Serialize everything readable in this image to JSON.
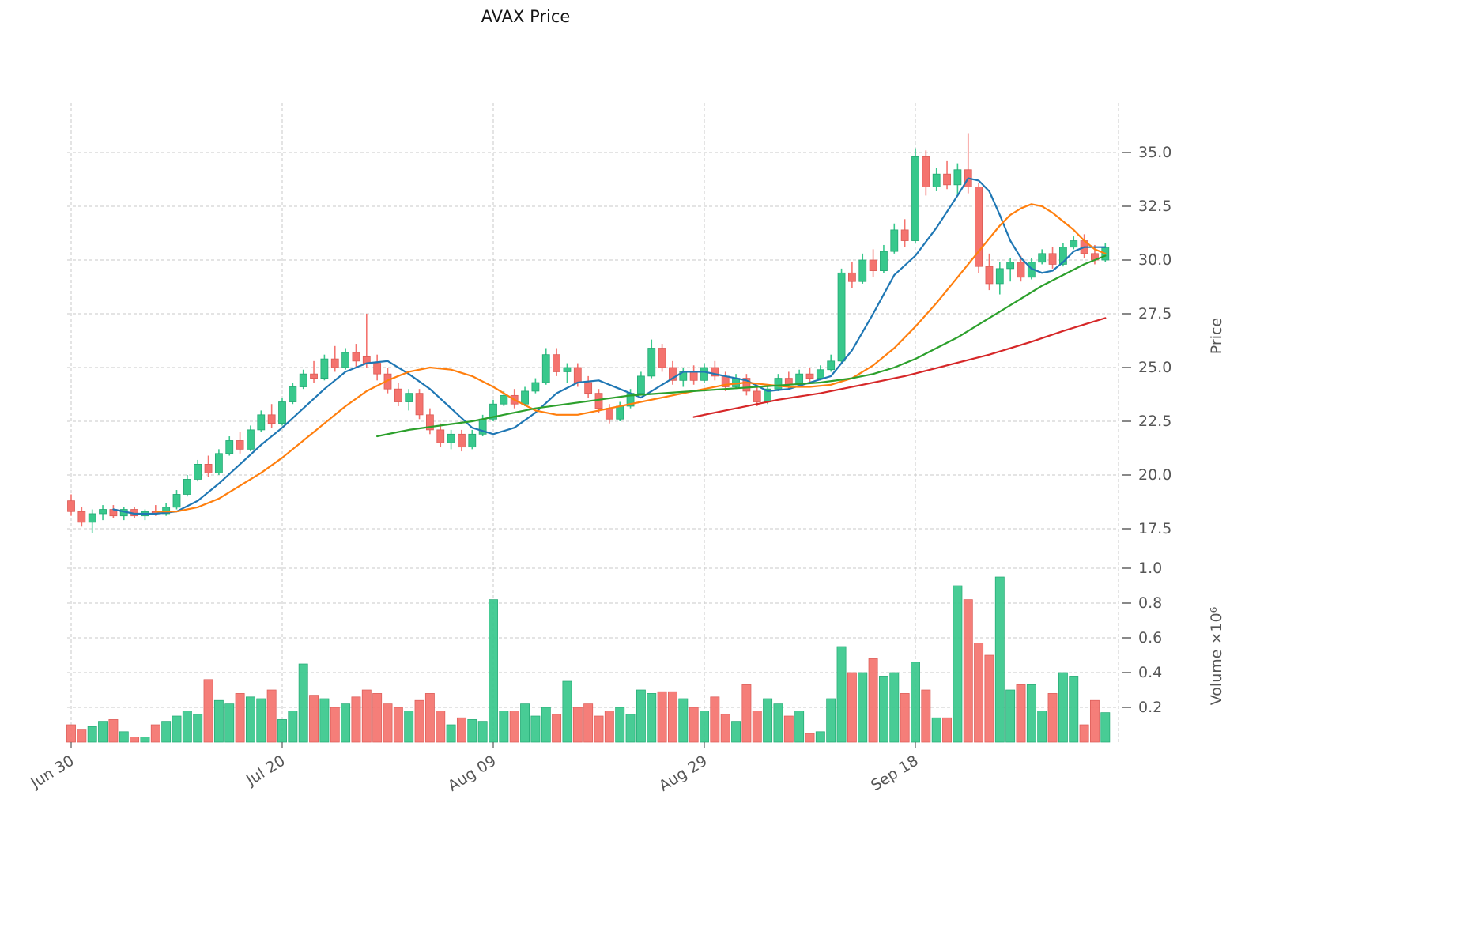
{
  "title": "AVAX Price",
  "axes": {
    "price_axis_label": "Price",
    "volume_axis_label": "Volume ×10⁶",
    "price_ticks": [
      {
        "v": 17.5,
        "label": "17.5"
      },
      {
        "v": 20.0,
        "label": "20.0"
      },
      {
        "v": 22.5,
        "label": "22.5"
      },
      {
        "v": 25.0,
        "label": "25.0"
      },
      {
        "v": 27.5,
        "label": "27.5"
      },
      {
        "v": 30.0,
        "label": "30.0"
      },
      {
        "v": 32.5,
        "label": "32.5"
      },
      {
        "v": 35.0,
        "label": "35.0"
      }
    ],
    "volume_ticks": [
      {
        "v": 0.2,
        "label": "0.2"
      },
      {
        "v": 0.4,
        "label": "0.4"
      },
      {
        "v": 0.6,
        "label": "0.6"
      },
      {
        "v": 0.8,
        "label": "0.8"
      },
      {
        "v": 1.0,
        "label": "1.0"
      }
    ],
    "x_ticks": [
      {
        "index": 0,
        "label": "Jun 30"
      },
      {
        "index": 20,
        "label": "Jul 20"
      },
      {
        "index": 40,
        "label": "Aug 09"
      },
      {
        "index": 60,
        "label": "Aug 29"
      },
      {
        "index": 80,
        "label": "Sep 18"
      }
    ]
  },
  "colors": {
    "up": "#38c88c",
    "down": "#f4736e",
    "up_edge": "#22a873",
    "down_edge": "#db5b56",
    "ma_fast": "#1f77b4",
    "ma_mid": "#ff7f0e",
    "ma_slow": "#2ca02c",
    "trend": "#d62728",
    "grid": "#c9c9c9",
    "tick_text": "#565656",
    "title_text": "#151515"
  },
  "chart_data": {
    "type": "candlestick",
    "x_unit": "daily",
    "price_ylim": [
      16.6,
      36.9
    ],
    "volume_ylim": [
      0,
      1.05
    ],
    "grid": "dashed",
    "candle_columns": [
      "open",
      "high",
      "low",
      "close",
      "volume_millions"
    ],
    "candles": [
      [
        18.8,
        19.1,
        18.1,
        18.3,
        0.1
      ],
      [
        18.3,
        18.5,
        17.6,
        17.8,
        0.07
      ],
      [
        17.8,
        18.4,
        17.3,
        18.2,
        0.09
      ],
      [
        18.2,
        18.6,
        17.9,
        18.4,
        0.12
      ],
      [
        18.4,
        18.6,
        18.0,
        18.1,
        0.13
      ],
      [
        18.1,
        18.5,
        17.9,
        18.4,
        0.06
      ],
      [
        18.4,
        18.5,
        18.0,
        18.1,
        0.03
      ],
      [
        18.1,
        18.4,
        17.9,
        18.3,
        0.03
      ],
      [
        18.3,
        18.6,
        18.1,
        18.2,
        0.1
      ],
      [
        18.2,
        18.7,
        18.1,
        18.5,
        0.12
      ],
      [
        18.5,
        19.3,
        18.4,
        19.1,
        0.15
      ],
      [
        19.1,
        20.0,
        19.0,
        19.8,
        0.18
      ],
      [
        19.8,
        20.7,
        19.7,
        20.5,
        0.16
      ],
      [
        20.5,
        20.9,
        19.9,
        20.1,
        0.36
      ],
      [
        20.1,
        21.2,
        20.0,
        21.0,
        0.24
      ],
      [
        21.0,
        21.8,
        20.9,
        21.6,
        0.22
      ],
      [
        21.6,
        22.0,
        21.0,
        21.2,
        0.28
      ],
      [
        21.2,
        22.3,
        21.1,
        22.1,
        0.26
      ],
      [
        22.1,
        23.0,
        22.0,
        22.8,
        0.25
      ],
      [
        22.8,
        23.3,
        22.2,
        22.4,
        0.3
      ],
      [
        22.4,
        23.6,
        22.3,
        23.4,
        0.13
      ],
      [
        23.4,
        24.3,
        23.3,
        24.1,
        0.18
      ],
      [
        24.1,
        24.9,
        24.0,
        24.7,
        0.45
      ],
      [
        24.7,
        25.3,
        24.3,
        24.5,
        0.27
      ],
      [
        24.5,
        25.6,
        24.4,
        25.4,
        0.25
      ],
      [
        25.4,
        26.0,
        24.8,
        25.0,
        0.2
      ],
      [
        25.0,
        25.9,
        24.9,
        25.7,
        0.22
      ],
      [
        25.7,
        26.1,
        25.0,
        25.3,
        0.26
      ],
      [
        25.5,
        27.5,
        25.0,
        25.2,
        0.3
      ],
      [
        25.2,
        25.6,
        24.4,
        24.7,
        0.28
      ],
      [
        24.7,
        25.0,
        23.8,
        24.0,
        0.22
      ],
      [
        24.0,
        24.3,
        23.2,
        23.4,
        0.2
      ],
      [
        23.4,
        24.0,
        23.0,
        23.8,
        0.18
      ],
      [
        23.8,
        24.0,
        22.6,
        22.8,
        0.24
      ],
      [
        22.8,
        23.1,
        21.9,
        22.1,
        0.28
      ],
      [
        22.1,
        22.4,
        21.3,
        21.5,
        0.18
      ],
      [
        21.5,
        22.1,
        21.2,
        21.9,
        0.1
      ],
      [
        21.9,
        22.1,
        21.1,
        21.3,
        0.14
      ],
      [
        21.3,
        22.1,
        21.2,
        21.9,
        0.13
      ],
      [
        21.9,
        22.8,
        21.8,
        22.6,
        0.12
      ],
      [
        22.6,
        23.5,
        22.5,
        23.3,
        0.82
      ],
      [
        23.3,
        23.9,
        23.2,
        23.7,
        0.18
      ],
      [
        23.7,
        24.0,
        23.1,
        23.3,
        0.18
      ],
      [
        23.3,
        24.1,
        23.2,
        23.9,
        0.22
      ],
      [
        23.9,
        24.5,
        23.8,
        24.3,
        0.15
      ],
      [
        24.3,
        25.9,
        24.2,
        25.6,
        0.2
      ],
      [
        25.6,
        25.9,
        24.6,
        24.8,
        0.16
      ],
      [
        24.8,
        25.2,
        24.3,
        25.0,
        0.35
      ],
      [
        25.0,
        25.2,
        24.1,
        24.3,
        0.2
      ],
      [
        24.3,
        24.6,
        23.6,
        23.8,
        0.22
      ],
      [
        23.8,
        24.0,
        22.9,
        23.1,
        0.15
      ],
      [
        23.1,
        23.3,
        22.4,
        22.6,
        0.18
      ],
      [
        22.6,
        23.4,
        22.5,
        23.2,
        0.2
      ],
      [
        23.2,
        24.0,
        23.1,
        23.8,
        0.16
      ],
      [
        23.8,
        24.8,
        23.7,
        24.6,
        0.3
      ],
      [
        24.6,
        26.3,
        24.5,
        25.9,
        0.28
      ],
      [
        25.9,
        26.1,
        24.8,
        25.0,
        0.29
      ],
      [
        25.0,
        25.3,
        24.2,
        24.4,
        0.29
      ],
      [
        24.4,
        25.0,
        24.1,
        24.8,
        0.25
      ],
      [
        24.8,
        25.1,
        24.2,
        24.4,
        0.2
      ],
      [
        24.4,
        25.2,
        24.3,
        25.0,
        0.18
      ],
      [
        25.0,
        25.3,
        24.4,
        24.6,
        0.26
      ],
      [
        24.6,
        24.8,
        23.9,
        24.1,
        0.16
      ],
      [
        24.1,
        24.7,
        24.0,
        24.5,
        0.12
      ],
      [
        24.5,
        24.7,
        23.7,
        23.9,
        0.33
      ],
      [
        23.9,
        24.1,
        23.2,
        23.4,
        0.18
      ],
      [
        23.4,
        24.2,
        23.3,
        24.0,
        0.25
      ],
      [
        24.0,
        24.7,
        23.9,
        24.5,
        0.22
      ],
      [
        24.5,
        24.8,
        24.0,
        24.2,
        0.15
      ],
      [
        24.2,
        24.9,
        24.1,
        24.7,
        0.18
      ],
      [
        24.7,
        25.0,
        24.3,
        24.5,
        0.05
      ],
      [
        24.5,
        25.1,
        24.4,
        24.9,
        0.06
      ],
      [
        24.9,
        25.6,
        24.8,
        25.3,
        0.25
      ],
      [
        25.3,
        29.6,
        25.2,
        29.4,
        0.55
      ],
      [
        29.4,
        29.9,
        28.7,
        29.0,
        0.4
      ],
      [
        29.0,
        30.3,
        28.9,
        30.0,
        0.4
      ],
      [
        30.0,
        30.5,
        29.2,
        29.5,
        0.48
      ],
      [
        29.5,
        30.7,
        29.4,
        30.4,
        0.38
      ],
      [
        30.4,
        31.7,
        30.3,
        31.4,
        0.4
      ],
      [
        31.4,
        31.9,
        30.6,
        30.9,
        0.28
      ],
      [
        30.9,
        35.2,
        30.8,
        34.8,
        0.46
      ],
      [
        34.8,
        35.1,
        33.0,
        33.4,
        0.3
      ],
      [
        33.4,
        34.3,
        33.2,
        34.0,
        0.14
      ],
      [
        34.0,
        34.6,
        33.3,
        33.5,
        0.14
      ],
      [
        33.5,
        34.5,
        33.0,
        34.2,
        0.9
      ],
      [
        34.2,
        35.9,
        33.1,
        33.4,
        0.82
      ],
      [
        33.4,
        33.6,
        29.4,
        29.7,
        0.57
      ],
      [
        29.7,
        30.3,
        28.6,
        28.9,
        0.5
      ],
      [
        28.9,
        29.9,
        28.4,
        29.6,
        0.95
      ],
      [
        29.6,
        30.1,
        29.0,
        29.9,
        0.3
      ],
      [
        29.9,
        30.2,
        29.0,
        29.2,
        0.33
      ],
      [
        29.2,
        30.1,
        29.1,
        29.9,
        0.33
      ],
      [
        29.9,
        30.5,
        29.8,
        30.3,
        0.18
      ],
      [
        30.3,
        30.6,
        29.6,
        29.8,
        0.28
      ],
      [
        29.8,
        30.8,
        29.7,
        30.6,
        0.4
      ],
      [
        30.6,
        31.1,
        30.5,
        30.9,
        0.38
      ],
      [
        30.9,
        31.2,
        30.1,
        30.3,
        0.1
      ],
      [
        30.3,
        30.7,
        29.8,
        30.0,
        0.24
      ],
      [
        30.0,
        30.8,
        29.9,
        30.6,
        0.17
      ]
    ],
    "overlays": [
      {
        "name": "ma-fast-blue",
        "color_key": "ma_fast",
        "points": [
          [
            4,
            18.4
          ],
          [
            6,
            18.2
          ],
          [
            8,
            18.2
          ],
          [
            10,
            18.3
          ],
          [
            12,
            18.8
          ],
          [
            14,
            19.6
          ],
          [
            16,
            20.5
          ],
          [
            18,
            21.4
          ],
          [
            20,
            22.2
          ],
          [
            22,
            23.1
          ],
          [
            24,
            24.0
          ],
          [
            26,
            24.8
          ],
          [
            28,
            25.2
          ],
          [
            30,
            25.3
          ],
          [
            32,
            24.7
          ],
          [
            34,
            24.0
          ],
          [
            36,
            23.1
          ],
          [
            38,
            22.2
          ],
          [
            40,
            21.9
          ],
          [
            42,
            22.2
          ],
          [
            44,
            22.9
          ],
          [
            46,
            23.8
          ],
          [
            48,
            24.3
          ],
          [
            50,
            24.4
          ],
          [
            52,
            24.0
          ],
          [
            54,
            23.6
          ],
          [
            56,
            24.2
          ],
          [
            58,
            24.8
          ],
          [
            60,
            24.8
          ],
          [
            62,
            24.6
          ],
          [
            64,
            24.4
          ],
          [
            66,
            23.9
          ],
          [
            68,
            24.0
          ],
          [
            70,
            24.3
          ],
          [
            72,
            24.6
          ],
          [
            74,
            25.8
          ],
          [
            76,
            27.5
          ],
          [
            78,
            29.3
          ],
          [
            80,
            30.2
          ],
          [
            82,
            31.5
          ],
          [
            84,
            33.0
          ],
          [
            85,
            33.8
          ],
          [
            86,
            33.7
          ],
          [
            87,
            33.2
          ],
          [
            88,
            32.1
          ],
          [
            89,
            30.9
          ],
          [
            90,
            30.1
          ],
          [
            91,
            29.6
          ],
          [
            92,
            29.4
          ],
          [
            93,
            29.5
          ],
          [
            94,
            29.9
          ],
          [
            95,
            30.4
          ],
          [
            96,
            30.6
          ],
          [
            97,
            30.6
          ],
          [
            98,
            30.6
          ]
        ]
      },
      {
        "name": "ma-mid-orange",
        "color_key": "ma_mid",
        "points": [
          [
            8,
            18.3
          ],
          [
            10,
            18.3
          ],
          [
            12,
            18.5
          ],
          [
            14,
            18.9
          ],
          [
            16,
            19.5
          ],
          [
            18,
            20.1
          ],
          [
            20,
            20.8
          ],
          [
            22,
            21.6
          ],
          [
            24,
            22.4
          ],
          [
            26,
            23.2
          ],
          [
            28,
            23.9
          ],
          [
            30,
            24.4
          ],
          [
            32,
            24.8
          ],
          [
            34,
            25.0
          ],
          [
            36,
            24.9
          ],
          [
            38,
            24.6
          ],
          [
            40,
            24.1
          ],
          [
            42,
            23.5
          ],
          [
            44,
            23.0
          ],
          [
            46,
            22.8
          ],
          [
            48,
            22.8
          ],
          [
            50,
            23.0
          ],
          [
            52,
            23.2
          ],
          [
            54,
            23.4
          ],
          [
            56,
            23.6
          ],
          [
            58,
            23.8
          ],
          [
            60,
            24.0
          ],
          [
            62,
            24.2
          ],
          [
            64,
            24.3
          ],
          [
            66,
            24.2
          ],
          [
            68,
            24.1
          ],
          [
            70,
            24.1
          ],
          [
            72,
            24.2
          ],
          [
            74,
            24.5
          ],
          [
            76,
            25.1
          ],
          [
            78,
            25.9
          ],
          [
            80,
            26.9
          ],
          [
            82,
            28.0
          ],
          [
            84,
            29.2
          ],
          [
            86,
            30.4
          ],
          [
            88,
            31.6
          ],
          [
            89,
            32.1
          ],
          [
            90,
            32.4
          ],
          [
            91,
            32.6
          ],
          [
            92,
            32.5
          ],
          [
            93,
            32.2
          ],
          [
            94,
            31.8
          ],
          [
            95,
            31.4
          ],
          [
            96,
            30.9
          ],
          [
            97,
            30.5
          ],
          [
            98,
            30.3
          ]
        ]
      },
      {
        "name": "ma-slow-green",
        "color_key": "ma_slow",
        "points": [
          [
            29,
            21.8
          ],
          [
            32,
            22.1
          ],
          [
            35,
            22.3
          ],
          [
            38,
            22.5
          ],
          [
            41,
            22.8
          ],
          [
            44,
            23.1
          ],
          [
            47,
            23.3
          ],
          [
            50,
            23.5
          ],
          [
            53,
            23.7
          ],
          [
            56,
            23.8
          ],
          [
            59,
            23.9
          ],
          [
            62,
            24.0
          ],
          [
            65,
            24.1
          ],
          [
            68,
            24.2
          ],
          [
            71,
            24.3
          ],
          [
            74,
            24.5
          ],
          [
            76,
            24.7
          ],
          [
            78,
            25.0
          ],
          [
            80,
            25.4
          ],
          [
            82,
            25.9
          ],
          [
            84,
            26.4
          ],
          [
            86,
            27.0
          ],
          [
            88,
            27.6
          ],
          [
            90,
            28.2
          ],
          [
            92,
            28.8
          ],
          [
            94,
            29.3
          ],
          [
            96,
            29.8
          ],
          [
            98,
            30.2
          ]
        ]
      },
      {
        "name": "trend-red",
        "color_key": "trend",
        "points": [
          [
            59,
            22.7
          ],
          [
            63,
            23.1
          ],
          [
            67,
            23.5
          ],
          [
            71,
            23.8
          ],
          [
            75,
            24.2
          ],
          [
            79,
            24.6
          ],
          [
            83,
            25.1
          ],
          [
            87,
            25.6
          ],
          [
            91,
            26.2
          ],
          [
            94,
            26.7
          ],
          [
            96,
            27.0
          ],
          [
            98,
            27.3
          ]
        ]
      }
    ]
  }
}
